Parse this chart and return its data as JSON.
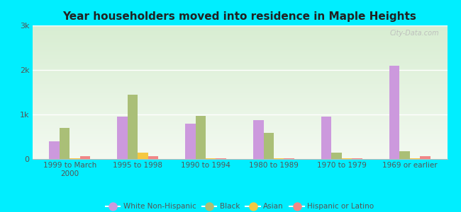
{
  "title": "Year householders moved into residence in Maple Heights",
  "categories": [
    "1999 to March\n2000",
    "1995 to 1998",
    "1990 to 1994",
    "1980 to 1989",
    "1970 to 1979",
    "1969 or earlier"
  ],
  "series": {
    "White Non-Hispanic": [
      400,
      950,
      800,
      870,
      950,
      2100
    ],
    "Black": [
      700,
      1450,
      970,
      580,
      150,
      180
    ],
    "Asian": [
      20,
      150,
      15,
      15,
      15,
      10
    ],
    "Hispanic or Latino": [
      60,
      60,
      10,
      10,
      10,
      60
    ]
  },
  "colors": {
    "White Non-Hispanic": "#cc99dd",
    "Black": "#aabf77",
    "Asian": "#f5c842",
    "Hispanic or Latino": "#f08888"
  },
  "ylim": [
    0,
    3000
  ],
  "yticks": [
    0,
    1000,
    2000,
    3000
  ],
  "ytick_labels": [
    "0",
    "1k",
    "2k",
    "3k"
  ],
  "fig_bg": "#00eeff",
  "watermark": "City-Data.com",
  "bar_width": 0.15
}
